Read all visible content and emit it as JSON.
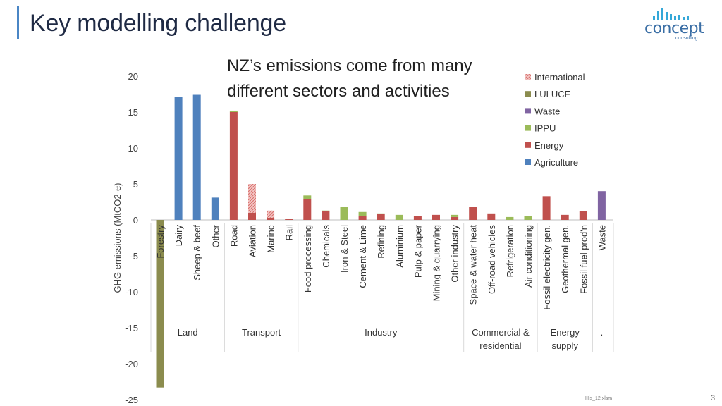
{
  "slide": {
    "title": "Key modelling challenge",
    "subtitle_line1": "NZ’s emissions come from many",
    "subtitle_line2": "different sectors and activities",
    "footer_file": "His_12.xlsm",
    "page_number": "3"
  },
  "logo": {
    "word": "concept",
    "sub": "consulting"
  },
  "chart_data": {
    "type": "bar",
    "stacked": true,
    "ylabel": "GHG emissions (MtCO2-e)",
    "ylim": [
      -25,
      20
    ],
    "yticks": [
      20,
      15,
      10,
      5,
      0,
      -5,
      -10,
      -15,
      -20,
      -25
    ],
    "grid": false,
    "legend_position": "top-right",
    "categories": [
      "Forestry",
      "Dairy",
      "Sheep & beef",
      "Other",
      "Road",
      "Aviation",
      "Marine",
      "Rail",
      "Food processing",
      "Chemicals",
      "Iron & Steel",
      "Cement & Lime",
      "Refining",
      "Aluminium",
      "Pulp & paper",
      "Mining & quarrying",
      "Other industry",
      "Space & water heat",
      "Off-road vehicles",
      "Refrigeration",
      "Air conditioning",
      "Fossil electricity gen.",
      "Geothermal gen.",
      "Fossil fuel prod'n",
      "Waste"
    ],
    "groups": [
      {
        "label_line1": "Land",
        "label_line2": "",
        "start": 0,
        "end": 3
      },
      {
        "label_line1": "Transport",
        "label_line2": "",
        "start": 4,
        "end": 7
      },
      {
        "label_line1": "Industry",
        "label_line2": "",
        "start": 8,
        "end": 16
      },
      {
        "label_line1": "Commercial &",
        "label_line2": "residential",
        "start": 17,
        "end": 20
      },
      {
        "label_line1": "Energy",
        "label_line2": "supply",
        "start": 21,
        "end": 23
      },
      {
        "label_line1": ".",
        "label_line2": "",
        "start": 24,
        "end": 24
      }
    ],
    "series": [
      {
        "name": "Agriculture",
        "color": "#4f81bd",
        "pattern": "solid",
        "values": [
          0,
          17.1,
          17.4,
          3.1,
          0,
          0,
          0,
          0,
          0,
          0,
          0,
          0,
          0,
          0,
          0,
          0,
          0,
          0,
          0,
          0,
          0,
          0,
          0,
          0,
          0
        ]
      },
      {
        "name": "Energy",
        "color": "#c0504d",
        "pattern": "solid",
        "values": [
          0,
          0,
          0,
          0,
          15.0,
          1.0,
          0.3,
          0.1,
          2.9,
          1.2,
          0,
          0.5,
          0.8,
          0,
          0.5,
          0.7,
          0.4,
          1.8,
          0.9,
          0,
          0,
          3.3,
          0.7,
          1.2,
          0
        ]
      },
      {
        "name": "IPPU",
        "color": "#9bbb59",
        "pattern": "solid",
        "values": [
          0,
          0,
          0,
          0,
          0.2,
          0,
          0,
          0,
          0.5,
          0.1,
          1.8,
          0.6,
          0.1,
          0.7,
          0,
          0,
          0.3,
          0,
          0,
          0.4,
          0.5,
          0,
          0,
          0,
          0
        ]
      },
      {
        "name": "Waste",
        "color": "#8064a2",
        "pattern": "solid",
        "values": [
          0,
          0,
          0,
          0,
          0,
          0,
          0,
          0,
          0,
          0,
          0,
          0,
          0,
          0,
          0,
          0,
          0,
          0,
          0,
          0,
          0,
          0,
          0,
          0,
          4.0
        ]
      },
      {
        "name": "LULUCF",
        "color": "#8b8c4e",
        "pattern": "solid",
        "values": [
          -23.3,
          0,
          0,
          0,
          0,
          0,
          0,
          0,
          0,
          0,
          0,
          0,
          0,
          0,
          0,
          0,
          0,
          0,
          0,
          0,
          0,
          0,
          0,
          0,
          0
        ]
      },
      {
        "name": "International",
        "color": "#e6a09e",
        "pattern": "hatched",
        "values": [
          0,
          0,
          0,
          0,
          0,
          4.0,
          1.0,
          0,
          0,
          0,
          0,
          0,
          0,
          0,
          0,
          0,
          0,
          0,
          0,
          0,
          0,
          0,
          0,
          0,
          0
        ]
      }
    ],
    "legend_order": [
      "International",
      "LULUCF",
      "Waste",
      "IPPU",
      "Energy",
      "Agriculture"
    ]
  }
}
